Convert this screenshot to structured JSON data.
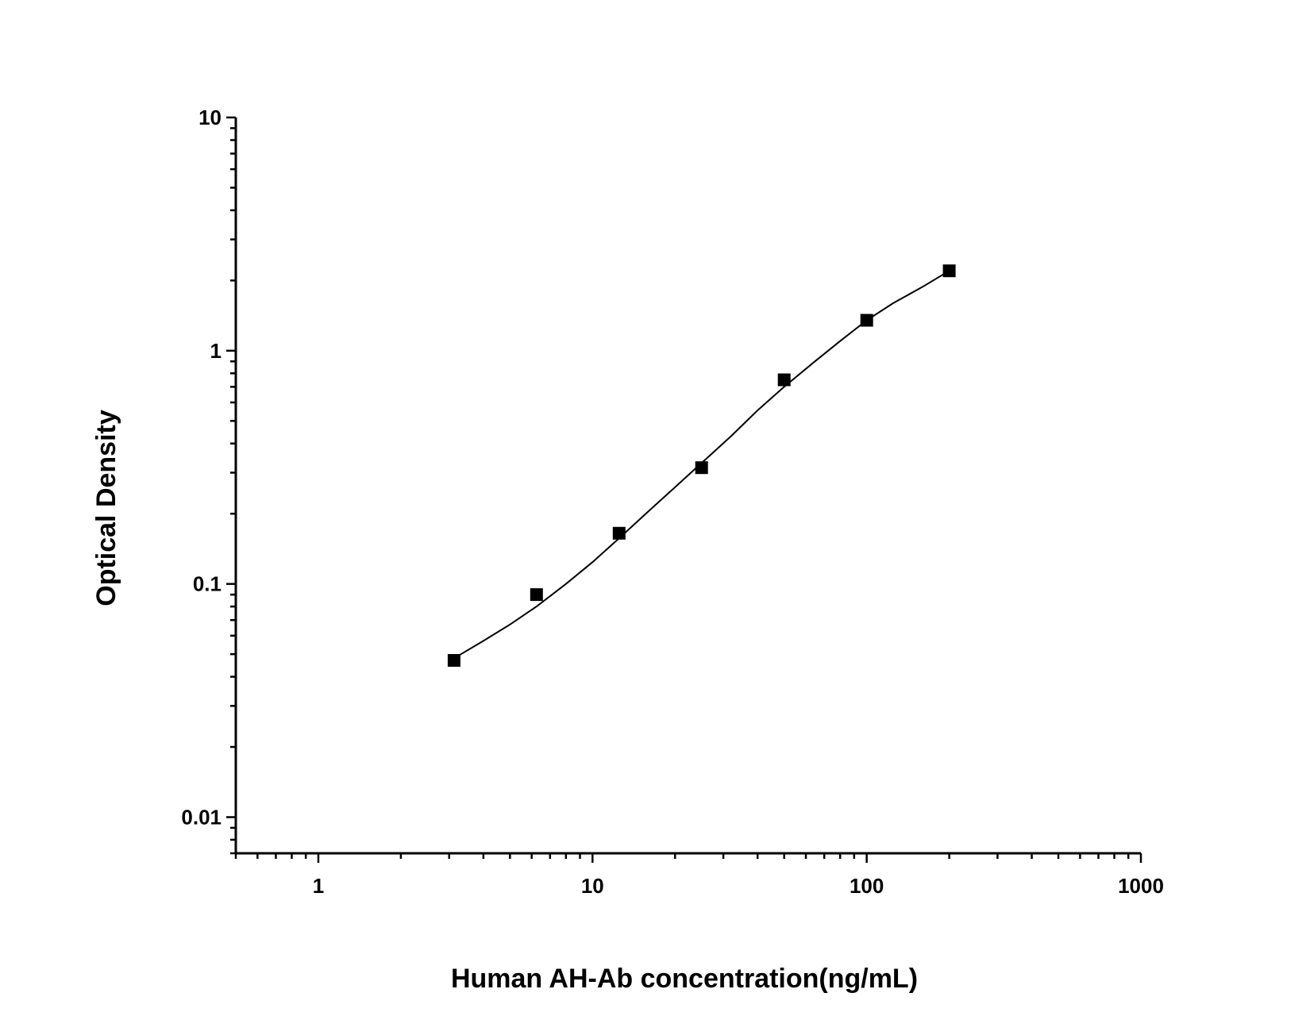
{
  "chart_data": {
    "type": "scatter",
    "xlabel": "Human AH-Ab concentration(ng/mL)",
    "ylabel": "Optical Density",
    "x_scale": "log",
    "y_scale": "log",
    "xlim": [
      0.5,
      1000
    ],
    "ylim": [
      0.007,
      10
    ],
    "x_ticks": [
      {
        "value": 1,
        "label": "1"
      },
      {
        "value": 10,
        "label": "10"
      },
      {
        "value": 100,
        "label": "100"
      },
      {
        "value": 1000,
        "label": "1000"
      }
    ],
    "y_ticks": [
      {
        "value": 0.01,
        "label": "0.01"
      },
      {
        "value": 0.1,
        "label": "0.1"
      },
      {
        "value": 1,
        "label": "1"
      },
      {
        "value": 10,
        "label": "10"
      }
    ],
    "points": {
      "marker": "square",
      "color": "#000000",
      "x": [
        3.125,
        6.25,
        12.5,
        25,
        50,
        100,
        200
      ],
      "y": [
        0.047,
        0.09,
        0.165,
        0.315,
        0.75,
        1.35,
        2.2
      ]
    },
    "fit_curve": {
      "color": "#000000",
      "x": [
        3.125,
        4,
        5,
        6.25,
        8,
        10,
        12.5,
        16,
        20,
        25,
        32,
        40,
        50,
        64,
        80,
        100,
        125,
        160,
        200
      ],
      "y": [
        0.048,
        0.057,
        0.067,
        0.08,
        0.1,
        0.124,
        0.157,
        0.205,
        0.26,
        0.33,
        0.43,
        0.555,
        0.7,
        0.89,
        1.1,
        1.35,
        1.6,
        1.88,
        2.2
      ]
    },
    "grid": false,
    "legend": "none"
  }
}
